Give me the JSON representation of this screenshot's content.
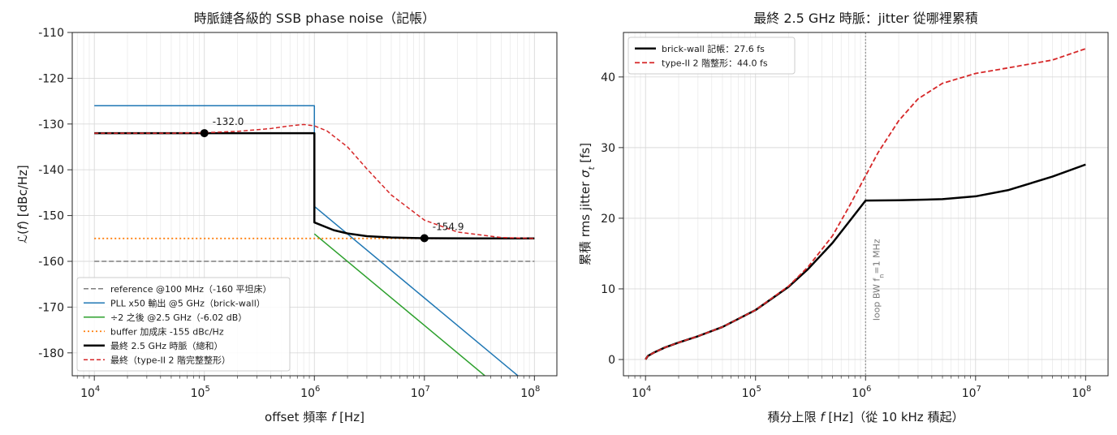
{
  "chart_data": [
    {
      "type": "line",
      "title": "時脈鏈各級的 SSB phase noise（記帳）",
      "xlabel": "offset 頻率 f [Hz]",
      "xlabel_parts": [
        "offset 頻率 ",
        "f",
        " [Hz]"
      ],
      "ylabel": "ℒ(f) [dBc/Hz]",
      "xscale": "log",
      "xlim": [
        6300,
        160000000
      ],
      "ylim": [
        -185,
        -110
      ],
      "xticks": [
        10000,
        100000,
        1000000,
        10000000,
        100000000
      ],
      "xtick_labels": [
        [
          "10",
          "4"
        ],
        [
          "10",
          "5"
        ],
        [
          "10",
          "6"
        ],
        [
          "10",
          "7"
        ],
        [
          "10",
          "8"
        ]
      ],
      "yticks": [
        -110,
        -120,
        -130,
        -140,
        -150,
        -160,
        -170,
        -180
      ],
      "ytick_labels": [
        "-110",
        "-120",
        "-130",
        "-140",
        "-150",
        "-160",
        "-170",
        "-180"
      ],
      "grid": true,
      "legend_position": "lower-left",
      "series": [
        {
          "name": "reference @100 MHz（-160 平坦床）",
          "color": "#7f7f7f",
          "dash": "6,3",
          "width": 1.5,
          "x": [
            10000,
            100000000
          ],
          "y": [
            -160,
            -160
          ]
        },
        {
          "name": "PLL x50 輸出 @5 GHz（brick-wall）",
          "color": "#1f77b4",
          "dash": "",
          "width": 1.5,
          "x": [
            10000,
            999999,
            1000000,
            10000000,
            100000000
          ],
          "y": [
            -126,
            -126,
            -148,
            -168,
            -188
          ]
        },
        {
          "name": "÷2 之後 @2.5 GHz（-6.02 dB）",
          "color": "#2ca02c",
          "dash": "",
          "width": 1.5,
          "x": [
            1000000,
            10000000,
            100000000
          ],
          "y": [
            -154,
            -174,
            -194
          ]
        },
        {
          "name": "buffer 加成床 -155 dBc/Hz",
          "color": "#ff7f0e",
          "dash": "2,3",
          "width": 1.8,
          "x": [
            10000,
            100000000
          ],
          "y": [
            -155,
            -155
          ]
        },
        {
          "name": "最終 2.5 GHz 時脈（總和）",
          "color": "#000000",
          "dash": "",
          "width": 2.5,
          "x": [
            10000,
            999999,
            1000000,
            1500000,
            2000000,
            3000000,
            5000000,
            10000000,
            30000000,
            100000000
          ],
          "y": [
            -132,
            -132,
            -151.5,
            -153.2,
            -153.9,
            -154.5,
            -154.8,
            -154.95,
            -155,
            -155
          ]
        },
        {
          "name": "最終（type-II 2 階完整整形）",
          "color": "#d62728",
          "dash": "5,3",
          "width": 1.5,
          "x": [
            10000,
            50000,
            100000,
            200000,
            400000,
            600000,
            800000,
            1000000,
            1300000,
            2000000,
            3000000,
            5000000,
            10000000,
            20000000,
            50000000,
            100000000
          ],
          "y": [
            -132,
            -132,
            -131.9,
            -131.6,
            -131,
            -130.4,
            -130.1,
            -130.4,
            -131.5,
            -135,
            -139.8,
            -145.5,
            -151,
            -153.6,
            -154.8,
            -155
          ]
        }
      ],
      "annotations": [
        {
          "text": "-132.0",
          "x": 100000,
          "y": -132
        },
        {
          "text": "-154.9",
          "x": 10000000,
          "y": -154.95
        }
      ]
    },
    {
      "type": "line",
      "title": "最終 2.5 GHz 時脈：jitter 從哪裡累積",
      "xlabel": "積分上限 f [Hz]（從 10 kHz 積起）",
      "xlabel_parts": [
        "積分上限 ",
        "f",
        " [Hz]（從 10 kHz 積起）"
      ],
      "ylabel": "累積 rms jitter σt [fs]",
      "xscale": "log",
      "xlim": [
        6300,
        160000000
      ],
      "ylim": [
        -2.3,
        46.3
      ],
      "xticks": [
        10000,
        100000,
        1000000,
        10000000,
        100000000
      ],
      "xtick_labels": [
        [
          "10",
          "4"
        ],
        [
          "10",
          "5"
        ],
        [
          "10",
          "6"
        ],
        [
          "10",
          "7"
        ],
        [
          "10",
          "8"
        ]
      ],
      "yticks": [
        0,
        10,
        20,
        30,
        40
      ],
      "ytick_labels": [
        "0",
        "10",
        "20",
        "30",
        "40"
      ],
      "grid": true,
      "legend_position": "top-left",
      "vline": {
        "x": 1000000,
        "label": "loop BW f",
        "label_sub": "n",
        "label_tail": "=1 MHz"
      },
      "series": [
        {
          "name": "brick-wall 記帳：27.6 fs",
          "color": "#000000",
          "dash": "",
          "width": 2.5,
          "x": [
            10000,
            10500,
            12000,
            15000,
            20000,
            30000,
            50000,
            100000,
            200000,
            300000,
            500000,
            700000,
            1000000,
            2000000,
            5000000,
            10000000,
            20000000,
            50000000,
            100000000
          ],
          "y": [
            0,
            0.5,
            1.0,
            1.7,
            2.4,
            3.3,
            4.6,
            7.0,
            10.3,
            12.8,
            16.5,
            19.4,
            22.5,
            22.55,
            22.7,
            23.1,
            24.0,
            25.9,
            27.6
          ]
        },
        {
          "name": "type-II 2 階整形：44.0 fs",
          "color": "#d62728",
          "dash": "6,3",
          "width": 1.8,
          "x": [
            10000,
            10500,
            12000,
            15000,
            20000,
            30000,
            50000,
            100000,
            200000,
            300000,
            500000,
            700000,
            1000000,
            1300000,
            2000000,
            3000000,
            5000000,
            10000000,
            20000000,
            50000000,
            100000000
          ],
          "y": [
            0,
            0.5,
            1.0,
            1.7,
            2.4,
            3.3,
            4.6,
            7.0,
            10.4,
            13.1,
            17.5,
            21.5,
            26.0,
            29.3,
            33.8,
            36.9,
            39.1,
            40.5,
            41.3,
            42.4,
            44.0
          ]
        }
      ]
    }
  ]
}
